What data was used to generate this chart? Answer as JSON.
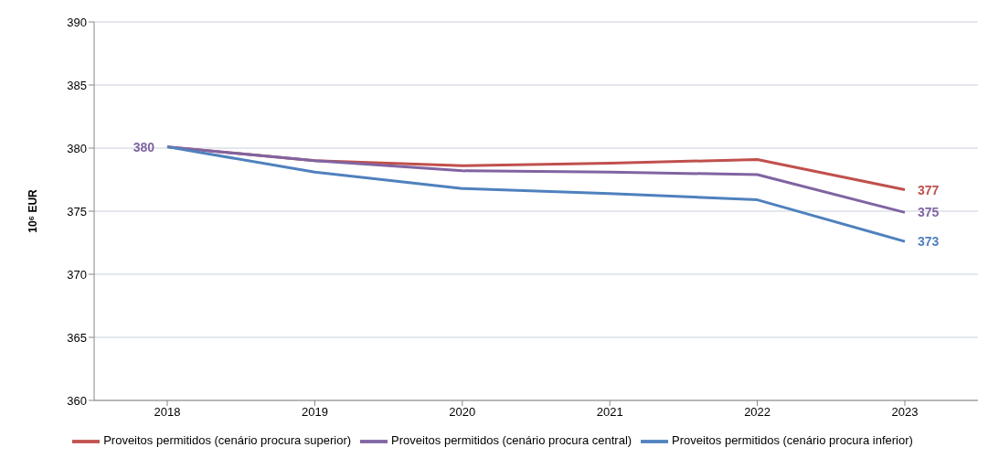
{
  "chart_data": {
    "type": "line",
    "ylabel": "10⁶ EUR",
    "categories": [
      "2018",
      "2019",
      "2020",
      "2021",
      "2022",
      "2023"
    ],
    "ylim": [
      360,
      390
    ],
    "yticks": [
      360,
      365,
      370,
      375,
      380,
      385,
      390
    ],
    "grid": "y",
    "legend": "bottom",
    "marker": "none",
    "line_style": "solid",
    "series": [
      {
        "name": "Proveitos permitidos (cenário procura superior)",
        "color": "#c0504d",
        "values": [
          380.1,
          379.0,
          378.6,
          378.8,
          379.1,
          376.7
        ],
        "value_labels": [
          null,
          null,
          null,
          null,
          null,
          "377"
        ]
      },
      {
        "name": "Proveitos permitidos (cenário procura central)",
        "color": "#8064a2",
        "values": [
          380.1,
          379.0,
          378.2,
          378.1,
          377.9,
          374.9
        ],
        "value_labels": [
          "380",
          null,
          null,
          null,
          null,
          "375"
        ]
      },
      {
        "name": "Proveitos permitidos (cenário procura inferior)",
        "color": "#4f81bd",
        "values": [
          380.1,
          378.1,
          376.8,
          376.4,
          375.9,
          372.6
        ],
        "value_labels": [
          null,
          null,
          null,
          null,
          null,
          "373"
        ]
      }
    ]
  }
}
